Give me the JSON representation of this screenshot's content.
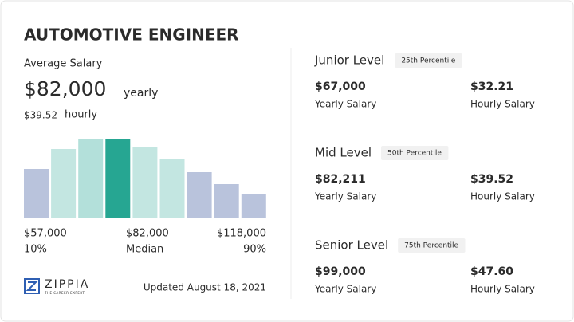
{
  "header": {
    "title": "AUTOMOTIVE ENGINEER"
  },
  "average": {
    "label": "Average Salary",
    "yearly": "$82,000",
    "yearly_unit": "yearly",
    "hourly": "$39.52",
    "hourly_unit": "hourly"
  },
  "histogram": {
    "values": [
      62,
      87,
      99,
      99,
      90,
      74,
      58,
      43,
      31
    ],
    "colors": [
      "#b9c3dc",
      "#c3e6e1",
      "#b3e0da",
      "#26a692",
      "#c3e6e1",
      "#c3e6e1",
      "#b9c3dc",
      "#b9c3dc",
      "#b9c3dc"
    ]
  },
  "range": {
    "low": "$57,000",
    "median": "$82,000",
    "high": "$118,000",
    "low_pct": "10%",
    "median_label": "Median",
    "high_pct": "90%"
  },
  "brand": {
    "name": "ZIPPIA",
    "tagline": "THE CAREER EXPERT"
  },
  "updated": "Updated August 18, 2021",
  "levels": [
    {
      "name": "Junior Level",
      "percentile": "25th Percentile",
      "yearly": "$67,000",
      "yearly_label": "Yearly Salary",
      "hourly": "$32.21",
      "hourly_label": "Hourly Salary"
    },
    {
      "name": "Mid Level",
      "percentile": "50th Percentile",
      "yearly": "$82,211",
      "yearly_label": "Yearly Salary",
      "hourly": "$39.52",
      "hourly_label": "Hourly Salary"
    },
    {
      "name": "Senior Level",
      "percentile": "75th Percentile",
      "yearly": "$99,000",
      "yearly_label": "Yearly Salary",
      "hourly": "$47.60",
      "hourly_label": "Hourly Salary"
    }
  ]
}
